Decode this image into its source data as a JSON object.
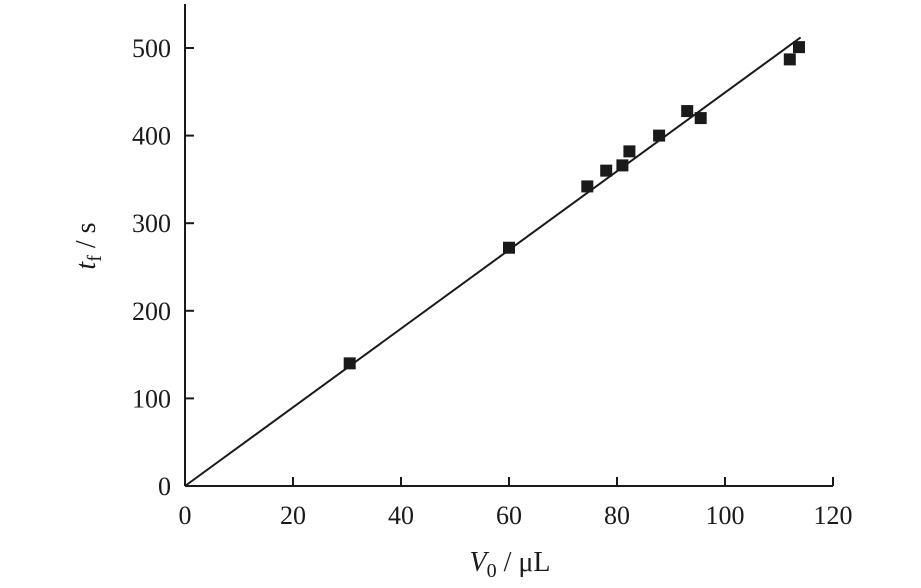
{
  "chart_data": {
    "type": "scatter",
    "title": "",
    "xlabel": {
      "var": "V",
      "sub": "0",
      "unit": " / μL"
    },
    "ylabel": {
      "var": "t",
      "sub": "f",
      "unit": " / s"
    },
    "xlim": [
      0,
      120
    ],
    "ylim": [
      0,
      550
    ],
    "xticks": [
      0,
      20,
      40,
      60,
      80,
      100,
      120
    ],
    "yticks": [
      0,
      100,
      200,
      300,
      400,
      500
    ],
    "grid": false,
    "series": [
      {
        "marker": "square",
        "color": "#1a1a1a",
        "points": [
          [
            30.5,
            140
          ],
          [
            60,
            272
          ],
          [
            74.5,
            342
          ],
          [
            78,
            360
          ],
          [
            81,
            366
          ],
          [
            82.3,
            382
          ],
          [
            87.8,
            400
          ],
          [
            93,
            428
          ],
          [
            95.5,
            420
          ],
          [
            112,
            487
          ],
          [
            113.7,
            501
          ]
        ]
      }
    ],
    "fit_line": {
      "color": "#1a1a1a",
      "from": [
        0,
        0
      ],
      "to": [
        114,
        512
      ]
    }
  }
}
